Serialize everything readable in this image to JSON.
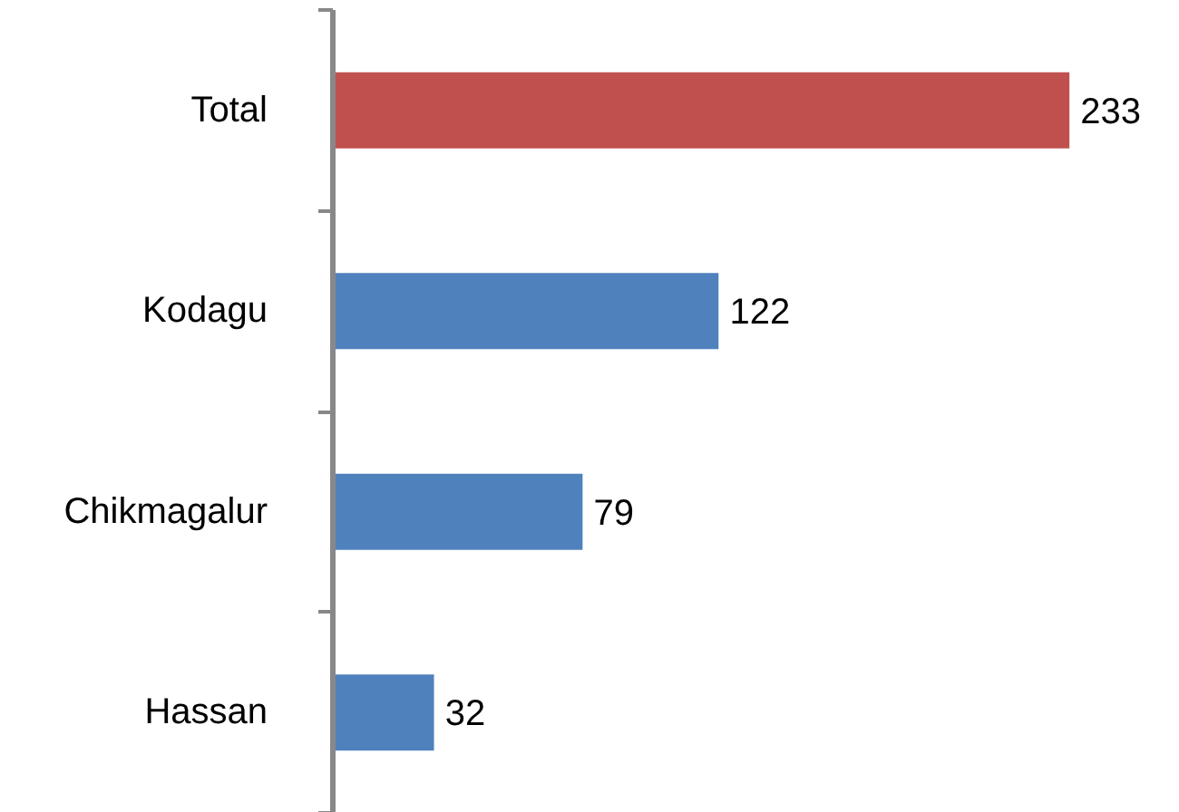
{
  "chart_data": {
    "type": "bar",
    "orientation": "horizontal",
    "categories": [
      "Total",
      "Kodagu",
      "Chikmagalur",
      "Hassan"
    ],
    "values": [
      233,
      122,
      79,
      32
    ],
    "colors": [
      "#c0504d",
      "#4f81bd",
      "#4f81bd",
      "#4f81bd"
    ],
    "data_labels": true
  }
}
